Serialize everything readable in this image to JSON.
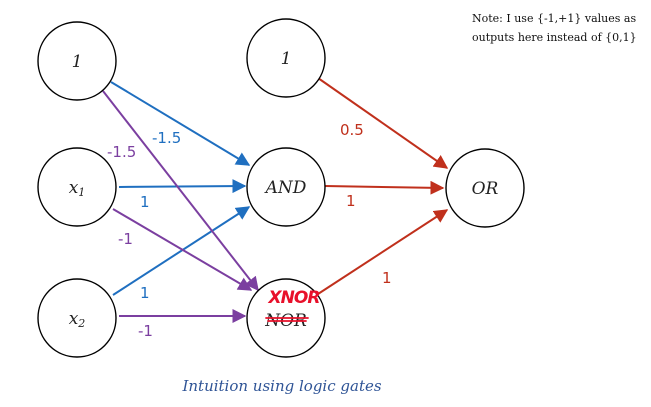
{
  "note": {
    "line1": "Note: I use {-1,+1} values as",
    "line2": "outputs here instead of {0,1}"
  },
  "caption": "Intuition using logic gates",
  "nodes": {
    "bias_input": {
      "label": "1"
    },
    "x1": {
      "label": "x",
      "sub": "1"
    },
    "x2": {
      "label": "x",
      "sub": "2"
    },
    "bias_hidden": {
      "label": "1"
    },
    "and": {
      "label": "AND"
    },
    "nor": {
      "label": "NOR",
      "handwritten_overlay": "XNOR"
    },
    "or": {
      "label": "OR"
    }
  },
  "weights": {
    "bias_to_and": "-1.5",
    "bias_to_nor": "-1.5",
    "x1_to_and": "1",
    "x1_to_nor": "-1",
    "x2_to_and": "1",
    "x2_to_nor": "-1",
    "bias_to_or": "0.5",
    "and_to_or": "1",
    "nor_to_or": "1"
  },
  "colors": {
    "and_edges": "#1f6fc0",
    "nor_edges": "#7b3fa0",
    "or_edges": "#c0301c",
    "handwriting": "#e8102a",
    "caption": "#2f5496"
  }
}
